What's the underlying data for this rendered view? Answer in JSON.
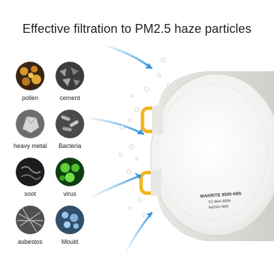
{
  "headline": "Effective filtration to PM2.5 haze particles",
  "particles": [
    {
      "label": "pollen",
      "icon": "pollen-icon"
    },
    {
      "label": "cement",
      "icon": "cement-icon"
    },
    {
      "label": "heavy metal",
      "icon": "heavy-metal-icon"
    },
    {
      "label": "Bacteria",
      "icon": "bacteria-icon"
    },
    {
      "label": "soot",
      "icon": "soot-icon"
    },
    {
      "label": "virus",
      "icon": "virus-icon"
    },
    {
      "label": "asbestos",
      "icon": "asbestos-icon"
    },
    {
      "label": "Mould",
      "icon": "mould-icon"
    }
  ],
  "mask": {
    "print_line_1": "MAKRITE 9500-N95",
    "print_line_2": "TC-84A-8064",
    "print_line_3": "NIOSH N95"
  },
  "colors": {
    "arrow": "#5aaee8",
    "strap_clip": "#f3b419",
    "mask_body": "#f4f4f2"
  }
}
